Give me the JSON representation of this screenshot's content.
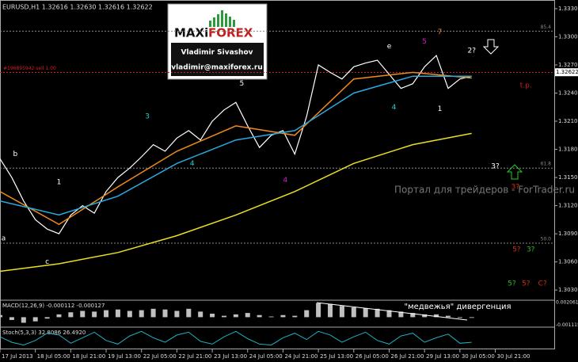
{
  "chart_data": {
    "type": "line",
    "title": "EURUSD,H1  1.32616 1.32630 1.32616 1.32622",
    "logo": {
      "brand_a": "MAXi",
      "brand_b": "FOREX",
      "name": "Vladimir Sivashov",
      "email": "vladimir@maxiforex.ru"
    },
    "watermark": "Портал для трейдеров - ForTrader.ru",
    "xlim": [
      0,
      47
    ],
    "xticks": [
      {
        "value": 0,
        "label": "17 Jul 2013"
      },
      {
        "value": 3,
        "label": "18 Jul 05:00"
      },
      {
        "value": 6,
        "label": "18 Jul 21:00"
      },
      {
        "value": 9,
        "label": "19 Jul 13:00"
      },
      {
        "value": 12,
        "label": "22 Jul 05:00"
      },
      {
        "value": 15,
        "label": "22 Jul 21:00"
      },
      {
        "value": 18,
        "label": "23 Jul 13:00"
      },
      {
        "value": 21,
        "label": "24 Jul 05:00"
      },
      {
        "value": 24,
        "label": "24 Jul 21:00"
      },
      {
        "value": 27,
        "label": "25 Jul 13:00"
      },
      {
        "value": 30,
        "label": "26 Jul 05:00"
      },
      {
        "value": 33,
        "label": "26 Jul 21:00"
      },
      {
        "value": 36,
        "label": "29 Jul 13:00"
      },
      {
        "value": 39,
        "label": "30 Jul 05:00"
      },
      {
        "value": 42,
        "label": "30 Jul 21:00"
      }
    ],
    "ylim": [
      1.302,
      1.3335
    ],
    "yticks": [
      {
        "value": 1.303,
        "label": "1.30300"
      },
      {
        "value": 1.306,
        "label": "1.30600"
      },
      {
        "value": 1.309,
        "label": "1.30900"
      },
      {
        "value": 1.312,
        "label": "1.31200"
      },
      {
        "value": 1.315,
        "label": "1.31500"
      },
      {
        "value": 1.318,
        "label": "1.31800"
      },
      {
        "value": 1.321,
        "label": "1.32100"
      },
      {
        "value": 1.324,
        "label": "1.32400"
      },
      {
        "value": 1.327,
        "label": "1.32700"
      },
      {
        "value": 1.33,
        "label": "1.33000"
      },
      {
        "value": 1.333,
        "label": "1.33300"
      }
    ],
    "last": {
      "value": 1.32622,
      "label": "1.32622"
    },
    "series": [
      {
        "name": "EURUSD",
        "color": "#ffffff",
        "x": [
          0,
          1,
          2,
          3,
          4,
          5,
          6,
          7,
          8,
          9,
          10,
          11,
          12,
          13,
          14,
          15,
          16,
          17,
          18,
          19,
          20,
          21,
          22,
          23,
          24,
          25,
          26,
          27,
          28,
          29,
          30,
          31,
          32,
          33,
          34,
          35,
          36,
          37,
          38,
          39,
          40
        ],
        "values": [
          1.317,
          1.315,
          1.3125,
          1.3105,
          1.3095,
          1.309,
          1.311,
          1.312,
          1.3112,
          1.3135,
          1.315,
          1.316,
          1.3172,
          1.3185,
          1.3178,
          1.3192,
          1.32,
          1.319,
          1.321,
          1.3222,
          1.323,
          1.3205,
          1.3182,
          1.3195,
          1.32,
          1.3175,
          1.3215,
          1.327,
          1.3262,
          1.3255,
          1.3268,
          1.3272,
          1.3275,
          1.326,
          1.3245,
          1.325,
          1.3268,
          1.328,
          1.3245,
          1.3255,
          1.3258
        ]
      },
      {
        "name": "MA fast",
        "color": "#f08a1c",
        "x": [
          0,
          5,
          10,
          15,
          20,
          25,
          30,
          35,
          40
        ],
        "values": [
          1.3135,
          1.31,
          1.314,
          1.3178,
          1.3205,
          1.3195,
          1.3255,
          1.3262,
          1.3256
        ]
      },
      {
        "name": "MA mid",
        "color": "#2aa8e0",
        "x": [
          0,
          5,
          10,
          15,
          20,
          25,
          30,
          35,
          40
        ],
        "values": [
          1.3125,
          1.311,
          1.313,
          1.3165,
          1.319,
          1.32,
          1.324,
          1.3258,
          1.3258
        ]
      },
      {
        "name": "MA slow",
        "color": "#e8e020",
        "x": [
          0,
          5,
          10,
          15,
          20,
          25,
          30,
          35,
          40
        ],
        "values": [
          1.305,
          1.3058,
          1.307,
          1.3088,
          1.311,
          1.3135,
          1.3165,
          1.3185,
          1.3197
        ]
      }
    ],
    "levels": [
      {
        "value": 1.3306,
        "label": "85.4",
        "color": "#888888"
      },
      {
        "value": 1.3262,
        "label": "#196895942 sell 1.00",
        "color": "#d02020"
      },
      {
        "value": 1.316,
        "label": "61.8",
        "color": "#888888"
      },
      {
        "value": 1.308,
        "label": "50.0",
        "color": "#888888"
      }
    ],
    "annotations": [
      {
        "text": "a",
        "x": 0.3,
        "y": 1.3085,
        "color": "#ffffff"
      },
      {
        "text": "b",
        "x": 1.3,
        "y": 1.3175,
        "color": "#ffffff"
      },
      {
        "text": "1",
        "x": 5,
        "y": 1.3145,
        "color": "#ffffff"
      },
      {
        "text": "c",
        "x": 4,
        "y": 1.306,
        "color": "#ffffff"
      },
      {
        "text": "3",
        "x": 12.5,
        "y": 1.3215,
        "color": "#20d0d0"
      },
      {
        "text": "4",
        "x": 16.3,
        "y": 1.3165,
        "color": "#20d0d0"
      },
      {
        "text": "5",
        "x": 20.5,
        "y": 1.325,
        "color": "#ffffff"
      },
      {
        "text": "4",
        "x": 24.2,
        "y": 1.3147,
        "color": "#d020d0"
      },
      {
        "text": "e",
        "x": 33,
        "y": 1.329,
        "color": "#ffffff"
      },
      {
        "text": "5",
        "x": 36,
        "y": 1.3295,
        "color": "#d020d0"
      },
      {
        "text": "7",
        "x": 37.3,
        "y": 1.3305,
        "color": "#f08a1c"
      },
      {
        "text": "1",
        "x": 37.3,
        "y": 1.3223,
        "color": "#ffffff"
      },
      {
        "text": "4",
        "x": 33.4,
        "y": 1.3225,
        "color": "#20d0d0"
      },
      {
        "text": "2?",
        "x": 40,
        "y": 1.3285,
        "color": "#ffffff"
      },
      {
        "text": "t.p.",
        "x": 44.6,
        "y": 1.3248,
        "color": "#d02020"
      },
      {
        "text": "3?",
        "x": 42,
        "y": 1.3162,
        "color": "#ffffff"
      },
      {
        "text": "3?",
        "x": 43.7,
        "y": 1.314,
        "color": "#d03010"
      },
      {
        "text": "5?",
        "x": 43.8,
        "y": 1.3073,
        "color": "#d03010"
      },
      {
        "text": "3?",
        "x": 45,
        "y": 1.3073,
        "color": "#20c020"
      },
      {
        "text": "5?",
        "x": 43.4,
        "y": 1.3037,
        "color": "#20c020"
      },
      {
        "text": "5?",
        "x": 44.6,
        "y": 1.3037,
        "color": "#d03010"
      },
      {
        "text": "C?",
        "x": 46,
        "y": 1.3037,
        "color": "#d03010"
      }
    ],
    "macd": {
      "label": "MACD(12,26,9) -0.000112 -0.000127",
      "note": "\"медвежья\" дивергенция",
      "color": "#c0c0c0",
      "ylim": [
        -0.0012,
        0.0022
      ],
      "yticks": [
        {
          "value": 0.002061,
          "label": "0.002061"
        },
        {
          "value": -0.001115,
          "label": "-0.001115"
        }
      ],
      "values": [
        0.0003,
        -0.0004,
        -0.0008,
        -0.0006,
        -0.0002,
        0.0004,
        0.0007,
        0.0009,
        0.0008,
        0.001,
        0.0011,
        0.0009,
        0.001,
        0.0012,
        0.0011,
        0.0009,
        0.0012,
        0.0008,
        0.0005,
        0.0002,
        0.0004,
        0.0006,
        0.0003,
        0.0001,
        0.0003,
        0.0002,
        0.001,
        0.002,
        0.0019,
        0.0016,
        0.0014,
        0.0013,
        0.0012,
        0.001,
        0.0008,
        0.0006,
        0.0004,
        0.0004,
        0.0002,
        -0.0001,
        -0.0001
      ]
    },
    "stoch": {
      "label": "Stoch(5,3,3) 32.8086 26.4920",
      "color": "#20b0c0",
      "ylim": [
        0,
        100
      ],
      "values": [
        60,
        30,
        15,
        40,
        80,
        70,
        25,
        55,
        85,
        40,
        20,
        65,
        90,
        55,
        30,
        70,
        85,
        35,
        20,
        60,
        90,
        50,
        20,
        15,
        55,
        80,
        45,
        90,
        70,
        30,
        60,
        85,
        40,
        20,
        65,
        80,
        30,
        55,
        75,
        25,
        30
      ]
    }
  }
}
